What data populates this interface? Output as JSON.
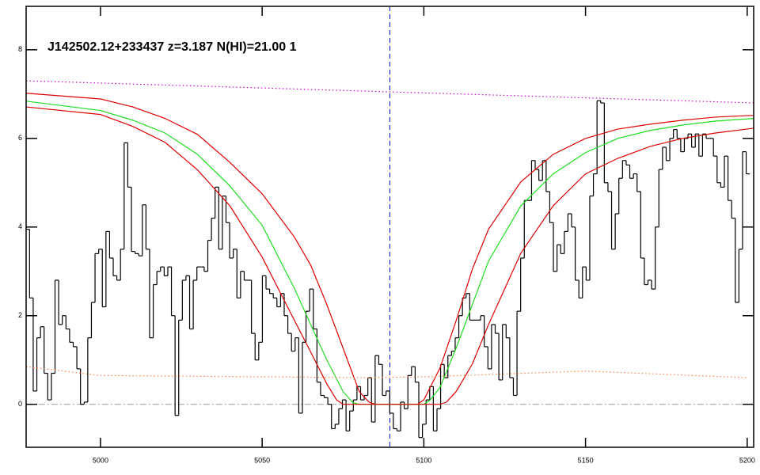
{
  "chart_data": {
    "type": "line",
    "title": "J142502.12+233437 z=3.187 N(HI)=21.00 1",
    "xlim": [
      4977,
      5202
    ],
    "ylim": [
      -0.97,
      8.98
    ],
    "xticks": [
      5000,
      5050,
      5100,
      5150,
      5200
    ],
    "yticks": [
      0,
      2,
      4,
      6,
      8
    ],
    "hline": 0,
    "vline": 5089.5,
    "series": [
      {
        "color": "#000000",
        "style": "step",
        "x": [
          4977.5,
          4978.625,
          4979.75,
          4980.875,
          4982,
          4983.125,
          4984.25,
          4985.375,
          4986.5,
          4987.625,
          4988.75,
          4989.875,
          4991,
          4992.125,
          4993.25,
          4994.375,
          4995.5,
          4996.625,
          4997.75,
          4998.875,
          5000,
          5001.125,
          5002.25,
          5003.375,
          5004.5,
          5005.625,
          5006.75,
          5007.875,
          5009,
          5010.125,
          5011.25,
          5012.375,
          5013.5,
          5014.625,
          5015.75,
          5016.875,
          5018,
          5019.125,
          5020.25,
          5021.375,
          5022.5,
          5023.625,
          5024.75,
          5025.875,
          5027,
          5028.125,
          5029.25,
          5030.375,
          5031.5,
          5032.625,
          5033.75,
          5034.875,
          5036,
          5037.125,
          5038.25,
          5039.375,
          5040.5,
          5041.625,
          5042.75,
          5043.875,
          5045,
          5046.125,
          5047.25,
          5048.375,
          5049.5,
          5050.625,
          5051.75,
          5052.875,
          5054,
          5055.125,
          5056.25,
          5057.375,
          5058.5,
          5059.625,
          5060.75,
          5061.875,
          5063,
          5064.125,
          5065.25,
          5066.375,
          5067.5,
          5068.625,
          5069.75,
          5070.875,
          5072,
          5073.125,
          5074.25,
          5075.375,
          5076.5,
          5077.625,
          5078.75,
          5079.875,
          5081,
          5082.125,
          5083.25,
          5084.375,
          5085.5,
          5086.625,
          5087.75,
          5088.875,
          5090,
          5091.125,
          5092.25,
          5093.375,
          5094.5,
          5095.625,
          5096.75,
          5097.875,
          5099,
          5100.125,
          5101.25,
          5102.375,
          5103.5,
          5104.625,
          5105.75,
          5106.875,
          5108,
          5109.125,
          5110.25,
          5111.375,
          5112.5,
          5113.625,
          5114.75,
          5115.875,
          5117,
          5118.125,
          5119.25,
          5120.375,
          5121.5,
          5122.625,
          5123.75,
          5124.875,
          5126,
          5127.125,
          5128.25,
          5129.375,
          5130.5,
          5131.625,
          5132.75,
          5133.875,
          5135,
          5136.125,
          5137.25,
          5138.375,
          5139.5,
          5140.625,
          5141.75,
          5142.875,
          5144,
          5145.125,
          5146.25,
          5147.375,
          5148.5,
          5149.625,
          5150.75,
          5151.875,
          5153,
          5154.125,
          5155.25,
          5156.375,
          5157.5,
          5158.625,
          5159.75,
          5160.875,
          5162,
          5163.125,
          5164.25,
          5165.375,
          5166.5,
          5167.625,
          5168.75,
          5169.875,
          5171,
          5172.125,
          5173.25,
          5174.375,
          5175.5,
          5176.625,
          5177.75,
          5178.875,
          5180,
          5181.125,
          5182.25,
          5183.375,
          5184.5,
          5185.625,
          5186.75,
          5187.875,
          5189,
          5190.125,
          5191.25,
          5192.375,
          5193.5,
          5194.625,
          5195.75,
          5196.875,
          5198,
          5199.125,
          5200.25
        ],
        "values": [
          3.95,
          2.4,
          0.3,
          1.5,
          1.75,
          0.7,
          0.1,
          0.7,
          2.8,
          1.8,
          2.0,
          1.7,
          1.4,
          1.3,
          0.8,
          0,
          0.05,
          1.5,
          2.3,
          3.4,
          3.5,
          2.2,
          3.9,
          3.3,
          2.9,
          2.8,
          3.5,
          5.9,
          4.9,
          3.45,
          3.4,
          3.35,
          4.5,
          3.5,
          1.5,
          2.7,
          3.0,
          3.1,
          2.9,
          3.1,
          2.0,
          -0.25,
          1.9,
          2.8,
          2.9,
          1.7,
          2.8,
          3.1,
          3.1,
          3.0,
          3.7,
          4.2,
          4.9,
          3.5,
          4.7,
          4.1,
          3.3,
          3.5,
          2.4,
          3.0,
          2.8,
          2.8,
          1.6,
          1.0,
          1.4,
          2.9,
          2.6,
          2.5,
          2.4,
          2.2,
          2.5,
          2.0,
          1.6,
          1.2,
          1.5,
          -0.2,
          1.4,
          2.1,
          2.6,
          1.7,
          0.5,
          0.2,
          0.15,
          0,
          -0.55,
          -0.45,
          -0.1,
          0.1,
          -0.6,
          -0.15,
          0.1,
          0.4,
          0.1,
          0.2,
          0.6,
          -0.4,
          1.1,
          0.9,
          0.2,
          0.3,
          -0.2,
          -0.55,
          -0.6,
          0.05,
          -0.1,
          0.65,
          0.85,
          0.5,
          -0.75,
          -0.45,
          0.1,
          0.4,
          -0.6,
          -0.1,
          0.9,
          0.6,
          1.1,
          1.2,
          1.5,
          2.0,
          2.4,
          2.5,
          1.9,
          1.9,
          1.9,
          2.0,
          1.3,
          0.8,
          1.8,
          1.6,
          0.55,
          1.8,
          1.5,
          0.6,
          0.2,
          2.1,
          3.3,
          4.6,
          4.6,
          5.5,
          5.3,
          5.05,
          5.5,
          4.8,
          4.1,
          3.0,
          3.6,
          3.4,
          3.9,
          4.3,
          4.0,
          2.8,
          2.4,
          3.1,
          2.8,
          4.7,
          5.2,
          6.85,
          6.8,
          5.0,
          4.8,
          3.5,
          4.3,
          5.1,
          5.5,
          5.4,
          5.1,
          5.2,
          4.8,
          3.3,
          2.7,
          2.8,
          2.6,
          4.0,
          5.3,
          5.8,
          5.5,
          6.0,
          6.2,
          6.0,
          5.7,
          6.0,
          6.1,
          5.8,
          6.1,
          5.6,
          6.1,
          6.0,
          6.0,
          5.6,
          5.0,
          4.9,
          5.6,
          4.6,
          4.2,
          2.3,
          3.5,
          5.7,
          5.2
        ]
      },
      {
        "color": "#dd0000",
        "style": "solid",
        "x": [
          4977,
          5000,
          5010,
          5020,
          5030,
          5040,
          5050,
          5060,
          5065,
          5070,
          5075,
          5080,
          5083,
          5085,
          5098,
          5100,
          5105,
          5110,
          5115,
          5120,
          5130,
          5140,
          5150,
          5160,
          5170,
          5180,
          5190,
          5202
        ],
        "values": [
          7.02,
          6.89,
          6.71,
          6.45,
          6.09,
          5.46,
          4.75,
          3.77,
          3.14,
          2.25,
          1.27,
          0.29,
          0.05,
          0,
          0,
          0.1,
          0.82,
          1.89,
          3.05,
          3.95,
          5.02,
          5.64,
          6.0,
          6.21,
          6.32,
          6.41,
          6.48,
          6.52
        ]
      },
      {
        "color": "#22dd22",
        "style": "solid",
        "x": [
          4977,
          5000,
          5010,
          5020,
          5030,
          5040,
          5050,
          5060,
          5065,
          5070,
          5075,
          5078,
          5080,
          5100,
          5102,
          5105,
          5110,
          5115,
          5120,
          5130,
          5140,
          5150,
          5160,
          5170,
          5180,
          5190,
          5202
        ],
        "values": [
          6.84,
          6.63,
          6.41,
          6.12,
          5.64,
          4.93,
          4.04,
          2.61,
          1.8,
          1.0,
          0.29,
          0.04,
          0,
          0,
          0.1,
          0.38,
          1.27,
          2.25,
          3.23,
          4.48,
          5.2,
          5.68,
          6.0,
          6.18,
          6.3,
          6.39,
          6.45
        ]
      },
      {
        "color": "#dd0000",
        "style": "solid",
        "x": [
          4977,
          5000,
          5010,
          5020,
          5030,
          5040,
          5050,
          5060,
          5065,
          5070,
          5073,
          5075,
          5105,
          5107,
          5110,
          5115,
          5120,
          5130,
          5140,
          5150,
          5160,
          5170,
          5180,
          5190,
          5202
        ],
        "values": [
          6.71,
          6.54,
          6.27,
          5.91,
          5.29,
          4.48,
          3.32,
          1.89,
          1.18,
          0.46,
          0.1,
          0,
          0,
          0.05,
          0.29,
          0.91,
          1.8,
          3.41,
          4.48,
          5.2,
          5.55,
          5.82,
          6.0,
          6.12,
          6.23
        ]
      },
      {
        "color": "#cc00cc",
        "style": "dotted",
        "x": [
          4977,
          5202
        ],
        "values": [
          7.3,
          6.8
        ]
      },
      {
        "color": "#ff8040",
        "style": "dotted",
        "x": [
          4977,
          5000,
          5050,
          5080,
          5100,
          5150,
          5200
        ],
        "values": [
          0.85,
          0.65,
          0.62,
          0.6,
          0.62,
          0.75,
          0.6
        ]
      }
    ]
  }
}
